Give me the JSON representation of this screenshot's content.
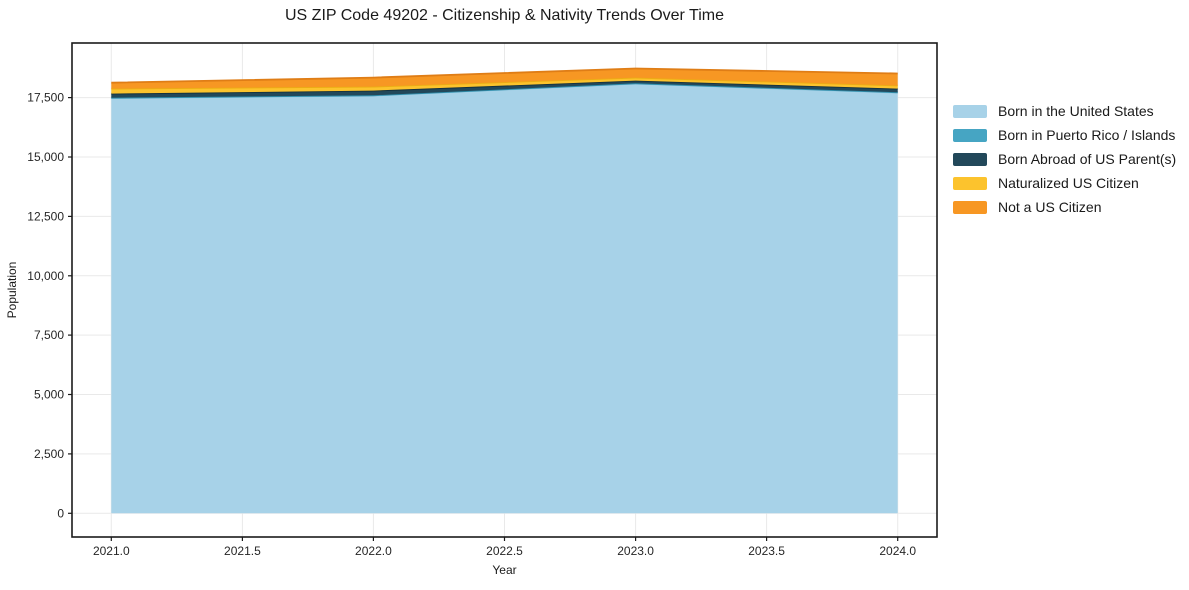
{
  "title": "US ZIP Code 49202 - Citizenship & Nativity Trends Over Time",
  "chart_data": {
    "type": "area",
    "stacked": true,
    "title": "US ZIP Code 49202 - Citizenship & Nativity Trends Over Time",
    "xlabel": "Year",
    "ylabel": "Population",
    "x": [
      2021,
      2022,
      2023,
      2024
    ],
    "series": [
      {
        "name": "Born in the United States",
        "values": [
          17480,
          17585,
          18090,
          17710
        ],
        "color": "#A7D2E8",
        "edge": "#90C4DC"
      },
      {
        "name": "Born in Puerto Rico / Islands",
        "values": [
          15,
          15,
          15,
          15
        ],
        "color": "#46A5C3",
        "edge": "#2F8FAD"
      },
      {
        "name": "Born Abroad of US Parent(s)",
        "values": [
          175,
          195,
          110,
          155
        ],
        "color": "#22485A",
        "edge": "#16313D"
      },
      {
        "name": "Naturalized US Citizen",
        "values": [
          210,
          170,
          130,
          130
        ],
        "color": "#FCC32D",
        "edge": "#EBAD14"
      },
      {
        "name": "Not a US Citizen",
        "values": [
          250,
          380,
          380,
          505
        ],
        "color": "#F79723",
        "edge": "#DF7D16"
      }
    ],
    "xlim": [
      2020.85,
      2024.15
    ],
    "ylim": [
      -1000,
      19800
    ],
    "xticks": [
      2021.0,
      2021.5,
      2022.0,
      2022.5,
      2023.0,
      2023.5,
      2024.0
    ],
    "xtick_labels": [
      "2021.0",
      "2021.5",
      "2022.0",
      "2022.5",
      "2023.0",
      "2023.5",
      "2024.0"
    ],
    "yticks": [
      0,
      2500,
      5000,
      7500,
      10000,
      12500,
      15000,
      17500
    ],
    "ytick_labels": [
      "0",
      "2,500",
      "5,000",
      "7,500",
      "10,000",
      "12,500",
      "15,000",
      "17,500"
    ],
    "grid": true,
    "grid_color": "#E9E9E9",
    "spine_color": "#1a1a1a",
    "tick_text_color": "#262626",
    "legend_position": "right"
  }
}
